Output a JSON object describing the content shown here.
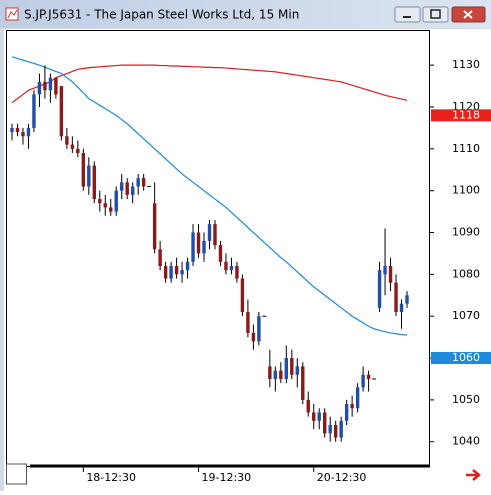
{
  "window_title": "S.JP.J5631 - The Japan Steel Works Ltd, 15 Min",
  "chart_data": {
    "type": "candlestick",
    "categories": [
      null,
      null,
      null,
      null,
      null,
      null,
      null,
      null,
      null,
      null,
      null,
      null,
      null,
      "18-12:30",
      null,
      null,
      null,
      null,
      null,
      null,
      null,
      null,
      null,
      null,
      null,
      null,
      null,
      null,
      null,
      null,
      null,
      null,
      null,
      null,
      "19-12:30",
      null,
      null,
      null,
      null,
      null,
      null,
      null,
      null,
      null,
      null,
      null,
      null,
      null,
      null,
      null,
      null,
      null,
      null,
      null,
      null,
      "20-12:30",
      null,
      null,
      null,
      null,
      null,
      null,
      null,
      null,
      null,
      null,
      null,
      null,
      null,
      null,
      null,
      null,
      null
    ],
    "ohlc": [
      [
        1114,
        1116,
        1112,
        1115
      ],
      [
        1115,
        1116,
        1113,
        1114
      ],
      [
        1114,
        1115,
        1111,
        1113
      ],
      [
        1113,
        1116,
        1110,
        1115
      ],
      [
        1115,
        1124,
        1114,
        1123
      ],
      [
        1123,
        1128,
        1120,
        1126
      ],
      [
        1126,
        1130,
        1122,
        1124
      ],
      [
        1124,
        1128,
        1121,
        1127
      ],
      [
        1127,
        1127,
        1122,
        1123
      ],
      [
        1125,
        1125,
        1112,
        1113
      ],
      [
        1113,
        1115,
        1110,
        1111
      ],
      [
        1111,
        1113,
        1109,
        1110
      ],
      [
        1110,
        1112,
        1108,
        1109
      ],
      [
        1109,
        1110,
        1100,
        1101
      ],
      [
        1101,
        1108,
        1099,
        1106
      ],
      [
        1106,
        1107,
        1097,
        1098
      ],
      [
        1098,
        1100,
        1095,
        1097
      ],
      [
        1097,
        1099,
        1094,
        1096
      ],
      [
        1096,
        1098,
        1094,
        1095
      ],
      [
        1095,
        1101,
        1094,
        1100
      ],
      [
        1100,
        1104,
        1098,
        1102
      ],
      [
        1102,
        1103,
        1098,
        1099
      ],
      [
        1099,
        1102,
        1097,
        1101
      ],
      [
        1101,
        1104,
        1099,
        1103
      ],
      [
        1103,
        1104,
        1100,
        1101
      ],
      [
        1101,
        1101,
        1101,
        1101
      ],
      [
        1097,
        1102,
        1085,
        1086
      ],
      [
        1086,
        1088,
        1081,
        1082
      ],
      [
        1082,
        1083,
        1078,
        1079
      ],
      [
        1079,
        1083,
        1078,
        1082
      ],
      [
        1082,
        1084,
        1079,
        1080
      ],
      [
        1080,
        1083,
        1078,
        1081
      ],
      [
        1081,
        1084,
        1079,
        1083
      ],
      [
        1083,
        1092,
        1082,
        1090
      ],
      [
        1090,
        1092,
        1084,
        1085
      ],
      [
        1085,
        1090,
        1083,
        1088
      ],
      [
        1088,
        1093,
        1086,
        1092
      ],
      [
        1092,
        1093,
        1086,
        1087
      ],
      [
        1087,
        1088,
        1082,
        1083
      ],
      [
        1083,
        1085,
        1080,
        1081
      ],
      [
        1081,
        1084,
        1080,
        1082
      ],
      [
        1082,
        1083,
        1078,
        1079
      ],
      [
        1079,
        1080,
        1070,
        1071
      ],
      [
        1071,
        1074,
        1065,
        1066
      ],
      [
        1066,
        1068,
        1062,
        1064
      ],
      [
        1064,
        1071,
        1063,
        1070
      ],
      [
        1070,
        1070,
        1070,
        1070
      ],
      [
        1058,
        1062,
        1053,
        1055
      ],
      [
        1055,
        1058,
        1052,
        1057
      ],
      [
        1057,
        1059,
        1054,
        1055
      ],
      [
        1055,
        1063,
        1054,
        1060
      ],
      [
        1060,
        1062,
        1055,
        1056
      ],
      [
        1056,
        1060,
        1053,
        1058
      ],
      [
        1058,
        1059,
        1049,
        1050
      ],
      [
        1050,
        1052,
        1046,
        1047
      ],
      [
        1047,
        1049,
        1043,
        1045
      ],
      [
        1045,
        1048,
        1043,
        1047
      ],
      [
        1047,
        1048,
        1041,
        1042
      ],
      [
        1042,
        1046,
        1040,
        1044
      ],
      [
        1044,
        1045,
        1040,
        1041
      ],
      [
        1041,
        1046,
        1040,
        1045
      ],
      [
        1045,
        1050,
        1044,
        1049
      ],
      [
        1049,
        1051,
        1046,
        1048
      ],
      [
        1048,
        1054,
        1047,
        1053
      ],
      [
        1053,
        1058,
        1052,
        1056
      ],
      [
        1056,
        1057,
        1052,
        1055
      ],
      [
        1055,
        1055,
        1055,
        1055
      ],
      [
        1072,
        1083,
        1071,
        1081
      ],
      [
        1080,
        1091,
        1075,
        1082
      ],
      [
        1082,
        1084,
        1076,
        1078
      ],
      [
        1078,
        1080,
        1070,
        1071
      ],
      [
        1071,
        1074,
        1067,
        1073
      ],
      [
        1073,
        1076,
        1072,
        1075
      ]
    ],
    "up_color": "#1f4fa8",
    "down_color": "#8b1a1a",
    "series": [
      {
        "color": "#d42020",
        "values": [
          1121,
          1122,
          1123,
          1124,
          1124.5,
          1125,
          1125.5,
          1126,
          1127,
          1127.5,
          1128,
          1128.5,
          1129,
          1129.2,
          1129.4,
          1129.5,
          1129.6,
          1129.7,
          1129.8,
          1129.9,
          1130,
          1130,
          1130,
          1130,
          1130,
          1130,
          1130,
          1129.9,
          1129.9,
          1129.8,
          1129.8,
          1129.7,
          1129.7,
          1129.6,
          1129.6,
          1129.5,
          1129.5,
          1129.4,
          1129.4,
          1129.3,
          1129.2,
          1129.1,
          1129,
          1128.9,
          1128.8,
          1128.7,
          1128.6,
          1128.5,
          1128.4,
          1128.2,
          1128,
          1127.8,
          1127.6,
          1127.4,
          1127.2,
          1127,
          1126.8,
          1126.6,
          1126.4,
          1126.2,
          1126,
          1125.6,
          1125.2,
          1124.8,
          1124.4,
          1124,
          1123.6,
          1123.2,
          1122.8,
          1122.5,
          1122.2,
          1121.9,
          1121.6
        ]
      },
      {
        "color": "#1e8ad8",
        "values": [
          1132,
          1131.6,
          1131.2,
          1130.8,
          1130.4,
          1130,
          1129.5,
          1129,
          1128.5,
          1128,
          1127,
          1126,
          1124.7,
          1123.4,
          1122,
          1121.2,
          1120.4,
          1119.6,
          1118.8,
          1118,
          1117,
          1116,
          1114.8,
          1113.6,
          1112.4,
          1111.2,
          1110,
          1108.8,
          1107.6,
          1106.4,
          1105.2,
          1104,
          1103,
          1102,
          1101,
          1100,
          1099,
          1098,
          1097,
          1096,
          1094.8,
          1093.6,
          1092.4,
          1091.2,
          1090,
          1088.8,
          1087.6,
          1086.4,
          1085.2,
          1084,
          1083,
          1081.8,
          1080.6,
          1079.4,
          1078.2,
          1077,
          1076,
          1075,
          1074,
          1073,
          1072,
          1071,
          1070,
          1069.2,
          1068.4,
          1067.6,
          1067,
          1066.6,
          1066.3,
          1066,
          1065.8,
          1065.6,
          1065.5
        ]
      }
    ],
    "ylim": [
      1138.4,
      1034.2
    ],
    "yticks": [
      1130,
      1120,
      1110,
      1100,
      1090,
      1080,
      1070,
      1060,
      1050,
      1040
    ],
    "price_markers": [
      {
        "value": 1118,
        "color": "#e8211a"
      },
      {
        "value": 1060,
        "color": "#1e8ad8"
      }
    ]
  }
}
